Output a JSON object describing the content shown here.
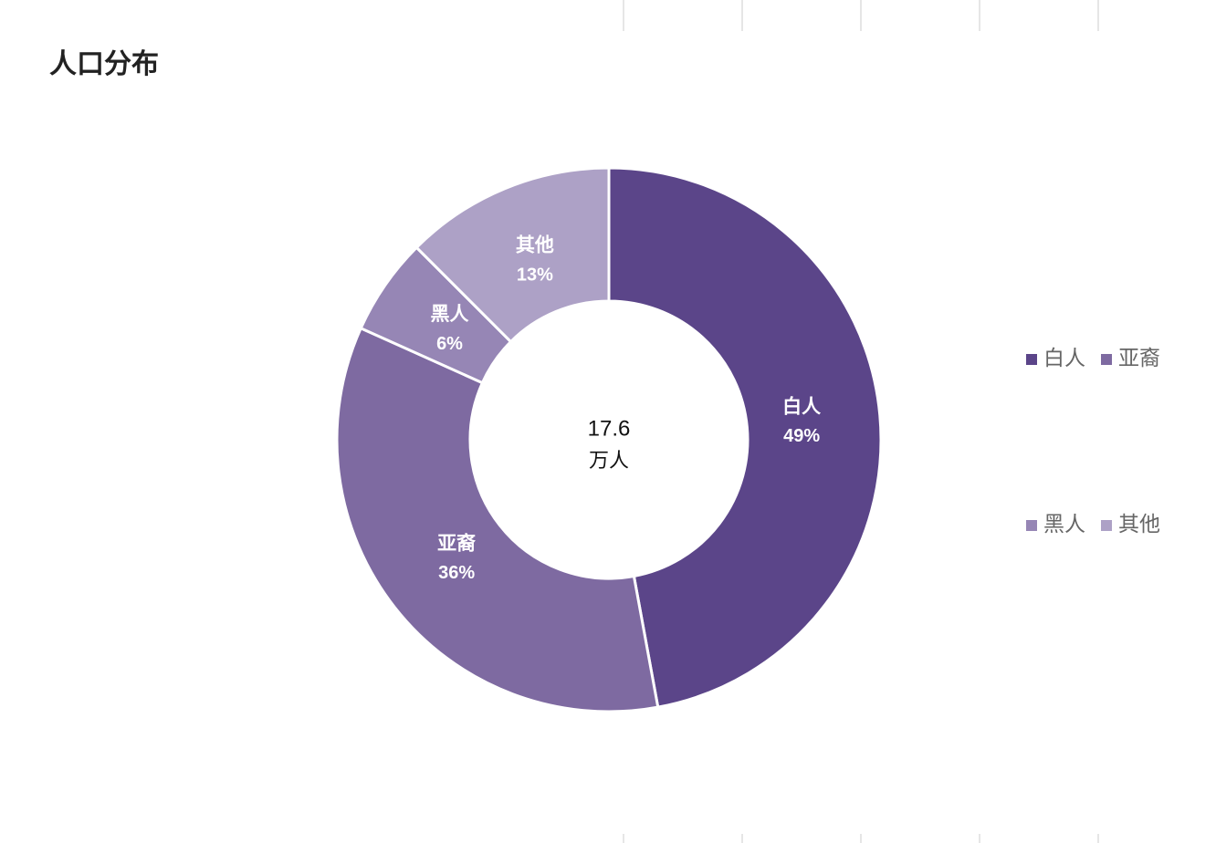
{
  "chart_data": {
    "type": "donut",
    "title": "人口分布",
    "total": 17.6,
    "total_unit": "万人",
    "categories": [
      "白人",
      "亚裔",
      "黑人",
      "其他"
    ],
    "values": [
      49,
      36,
      6,
      13
    ],
    "value_labels": [
      "49%",
      "36%",
      "6%",
      "13%"
    ],
    "colors": [
      "#5b4589",
      "#7e6aa1",
      "#9686b5",
      "#ada1c6"
    ],
    "legend": "right"
  }
}
